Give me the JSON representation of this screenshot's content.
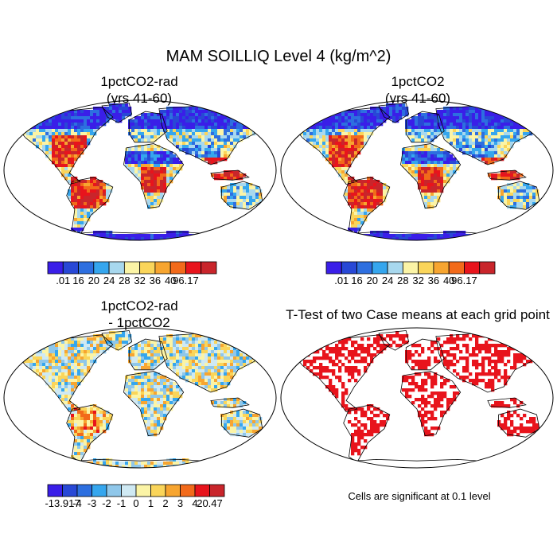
{
  "title": "MAM SOILLIQ Level 4 (kg/m^2)",
  "panels": [
    {
      "title_lines": [
        "1pctCO2-rad",
        "(yrs 41-60)"
      ]
    },
    {
      "title_lines": [
        "1pctCO2",
        "(yrs 41-60)"
      ]
    },
    {
      "title_lines": [
        "1pctCO2-rad",
        "- 1pctCO2"
      ]
    },
    {
      "title_lines": [
        "T-Test of two Case means at each grid point"
      ]
    }
  ],
  "footnote": "Cells are significant at 0.1 level",
  "chart_data": [
    {
      "type": "heatmap",
      "title": "1pctCO2-rad (yrs 41-60)",
      "colorbar": {
        "colors": [
          "#3a1ee8",
          "#2848d6",
          "#2d6fe0",
          "#35a6ee",
          "#a8d8ee",
          "#fbf4a6",
          "#fad55a",
          "#f7a530",
          "#f26a1a",
          "#e8141c",
          "#c9252b"
        ],
        "tick_labels": [
          ".01",
          "16",
          "20",
          "24",
          "28",
          "32",
          "36",
          "40",
          "96.17"
        ]
      }
    },
    {
      "type": "heatmap",
      "title": "1pctCO2 (yrs 41-60)",
      "colorbar": {
        "colors": [
          "#3a1ee8",
          "#2848d6",
          "#2d6fe0",
          "#35a6ee",
          "#a8d8ee",
          "#fbf4a6",
          "#fad55a",
          "#f7a530",
          "#f26a1a",
          "#e8141c",
          "#c9252b"
        ],
        "tick_labels": [
          ".01",
          "16",
          "20",
          "24",
          "28",
          "32",
          "36",
          "40",
          "96.17"
        ]
      }
    },
    {
      "type": "heatmap",
      "title": "1pctCO2-rad - 1pctCO2",
      "colorbar": {
        "colors": [
          "#3a1ee8",
          "#2848d6",
          "#2d6fe0",
          "#35a6ee",
          "#8fc7ea",
          "#cfe9f3",
          "#fbf4a6",
          "#fad55a",
          "#f7a530",
          "#f26a1a",
          "#e8141c",
          "#c9252b"
        ],
        "tick_labels": [
          "-13.917",
          "-4",
          "-3",
          "-2",
          "-1",
          "0",
          "1",
          "2",
          "3",
          "4",
          "20.47"
        ]
      }
    },
    {
      "type": "heatmap",
      "title": "T-Test of two Case means at each grid point",
      "significance_color": "#e8141c",
      "note": "Cells are significant at 0.1 level"
    }
  ]
}
